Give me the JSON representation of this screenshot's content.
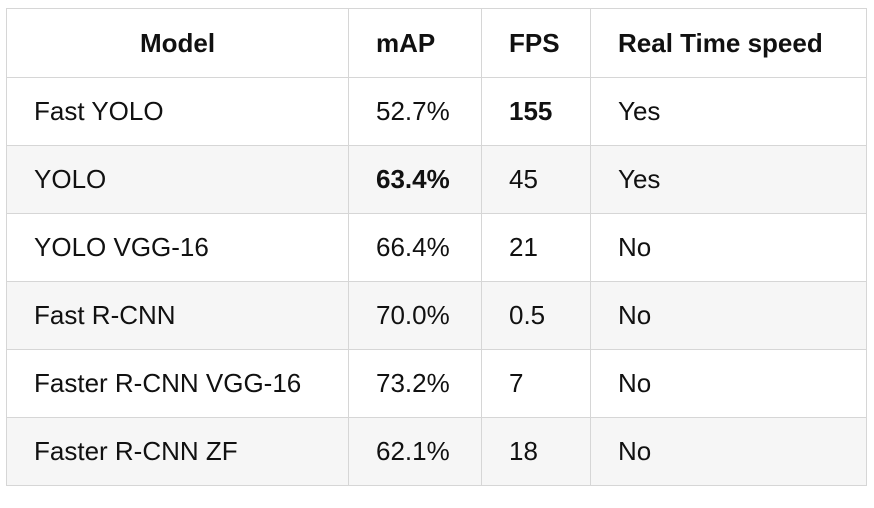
{
  "table": {
    "headers": [
      "Model",
      "mAP",
      "FPS",
      "Real Time speed"
    ],
    "rows": [
      {
        "model": "Fast YOLO",
        "map": "52.7%",
        "fps": "155",
        "realtime": "Yes"
      },
      {
        "model": "YOLO",
        "map": "63.4%",
        "fps": "45",
        "realtime": "Yes"
      },
      {
        "model": "YOLO VGG-16",
        "map": "66.4%",
        "fps": "21",
        "realtime": "No"
      },
      {
        "model": "Fast R-CNN",
        "map": "70.0%",
        "fps": "0.5",
        "realtime": "No"
      },
      {
        "model": "Faster R-CNN VGG-16",
        "map": "73.2%",
        "fps": "7",
        "realtime": "No"
      },
      {
        "model": "Faster R-CNN ZF",
        "map": "62.1%",
        "fps": "18",
        "realtime": "No"
      }
    ],
    "bold_cells": [
      {
        "row": 0,
        "column": "fps"
      },
      {
        "row": 1,
        "column": "map"
      }
    ]
  }
}
